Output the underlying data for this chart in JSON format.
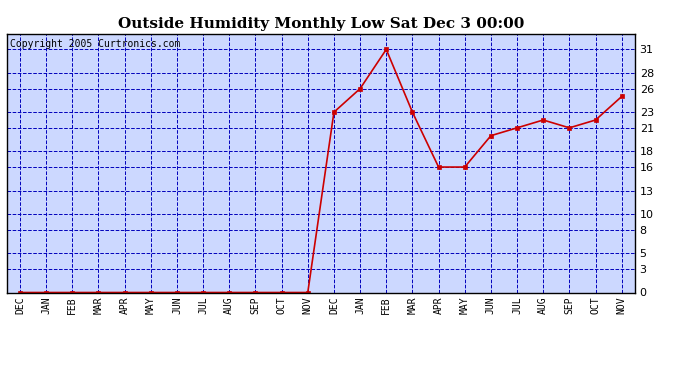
{
  "title": "Outside Humidity Monthly Low Sat Dec 3 00:00",
  "copyright": "Copyright 2005 Curtronics.com",
  "x_labels": [
    "DEC",
    "JAN",
    "FEB",
    "MAR",
    "APR",
    "MAY",
    "JUN",
    "JUL",
    "AUG",
    "SEP",
    "OCT",
    "NOV",
    "DEC",
    "JAN",
    "FEB",
    "MAR",
    "APR",
    "MAY",
    "JUN",
    "JUL",
    "AUG",
    "SEP",
    "OCT",
    "NOV"
  ],
  "y_values": [
    0,
    0,
    0,
    0,
    0,
    0,
    0,
    0,
    0,
    0,
    0,
    0,
    23,
    26,
    31,
    23,
    16,
    16,
    20,
    21,
    22,
    21,
    22,
    25
  ],
  "line_color": "#cc0000",
  "marker_color": "#cc0000",
  "background_color": "#ffffff",
  "plot_bg_color": "#ccd8ff",
  "grid_color": "#0000bb",
  "axis_label_color": "#000000",
  "title_color": "#000000",
  "y_ticks": [
    0,
    3,
    5,
    8,
    10,
    13,
    16,
    18,
    21,
    23,
    26,
    28,
    31
  ],
  "ylim": [
    0,
    33
  ],
  "title_fontsize": 11,
  "copyright_fontsize": 7
}
